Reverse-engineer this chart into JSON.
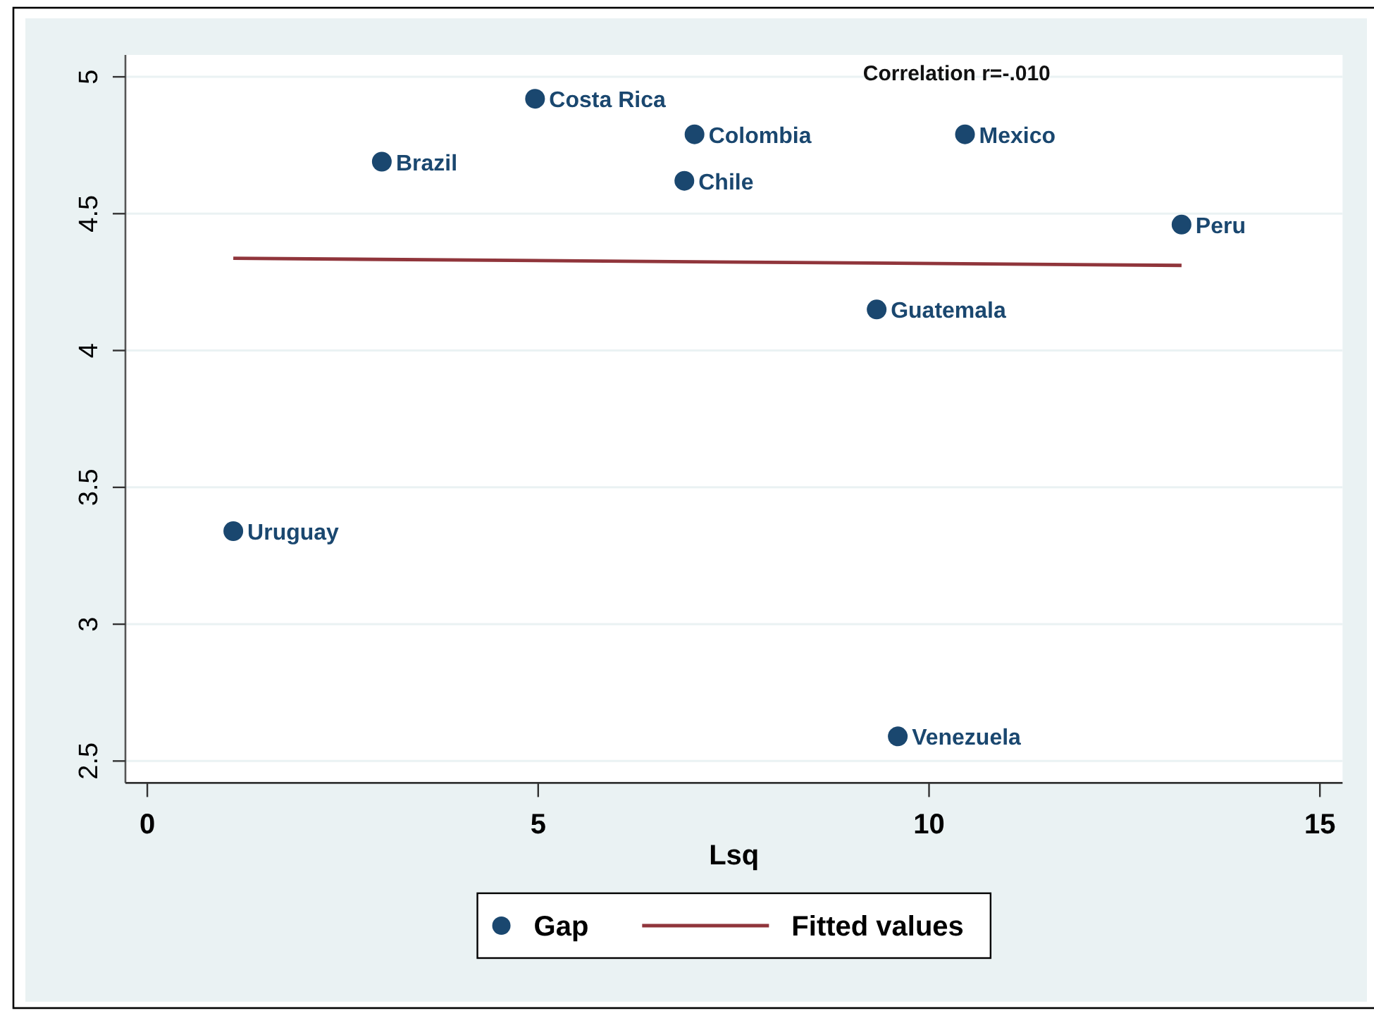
{
  "chart_data": {
    "type": "scatter",
    "xlabel": "Lsq",
    "series": [
      {
        "name": "Gap",
        "color": "#1a476f",
        "x": [
          1.1,
          3.0,
          4.96,
          6.87,
          7.0,
          9.33,
          9.6,
          10.46,
          13.23
        ],
        "values": [
          3.34,
          4.69,
          4.92,
          4.62,
          4.79,
          4.15,
          2.59,
          4.79,
          4.46
        ]
      },
      {
        "name": "Fitted values",
        "type": "line",
        "color": "#90353b",
        "marker": "none",
        "x": [
          1.1,
          13.23
        ],
        "values": [
          4.337,
          4.311
        ]
      }
    ],
    "xlim": [
      -0.28,
      15.29
    ],
    "xticks": [
      0,
      5,
      10,
      15
    ],
    "ylim": [
      2.42,
      5.08
    ],
    "yticks": [
      2.5,
      3,
      3.5,
      4,
      4.5,
      5
    ],
    "grid": "y",
    "legend": "bottom",
    "marker": "circle",
    "annotations": [
      "Correlation r=-.010",
      {
        "text": "Uruguay",
        "x": 1.1,
        "y": 3.34
      },
      {
        "text": "Brazil",
        "x": 3.0,
        "y": 4.69
      },
      {
        "text": "Costa Rica",
        "x": 4.96,
        "y": 4.92
      },
      {
        "text": "Chile",
        "x": 6.87,
        "y": 4.62
      },
      {
        "text": "Colombia",
        "x": 7.0,
        "y": 4.79
      },
      {
        "text": "Guatemala",
        "x": 9.33,
        "y": 4.15
      },
      {
        "text": "Venezuela",
        "x": 9.6,
        "y": 2.59
      },
      {
        "text": "Mexico",
        "x": 10.46,
        "y": 4.79
      },
      {
        "text": "Peru",
        "x": 13.23,
        "y": 4.46
      }
    ]
  }
}
